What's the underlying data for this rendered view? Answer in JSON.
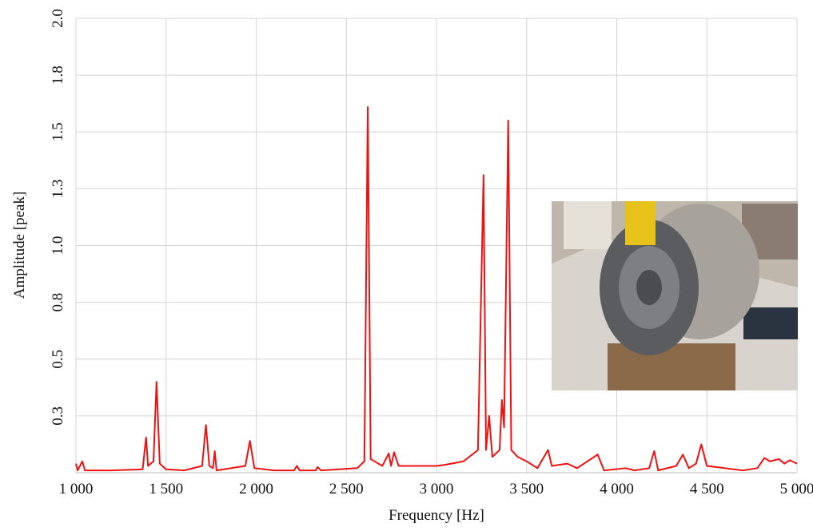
{
  "chart_data": {
    "type": "line",
    "x_label": "Frequency [Hz]",
    "y_label": "Amplitude [peak]",
    "xlim": [
      1000,
      5000
    ],
    "ylim": [
      0,
      2
    ],
    "xticks": [
      {
        "value": 1000,
        "label": "1 000"
      },
      {
        "value": 1500,
        "label": "1 500"
      },
      {
        "value": 2000,
        "label": "2 000"
      },
      {
        "value": 2500,
        "label": "2 500"
      },
      {
        "value": 3000,
        "label": "3 000"
      },
      {
        "value": 3500,
        "label": "3 500"
      },
      {
        "value": 4000,
        "label": "4 000"
      },
      {
        "value": 4500,
        "label": "4 500"
      },
      {
        "value": 5000,
        "label": "5 000"
      }
    ],
    "yticks": [
      {
        "value": 0.25,
        "label": "0.3"
      },
      0.5,
      {
        "value": 0.75,
        "label": "0.8"
      },
      {
        "value": 1,
        "label": "1.0"
      },
      {
        "value": 1.25,
        "label": "1.3"
      },
      1.5,
      {
        "value": 1.75,
        "label": "1.8"
      },
      {
        "value": 2,
        "label": "2.0"
      }
    ],
    "grid": true,
    "x": [
      1000,
      1010,
      1035,
      1050,
      1200,
      1370,
      1389,
      1400,
      1430,
      1447,
      1465,
      1500,
      1600,
      1700,
      1721,
      1740,
      1760,
      1770,
      1780,
      1940,
      1965,
      1990,
      2100,
      2210,
      2226,
      2240,
      2330,
      2340,
      2360,
      2560,
      2600,
      2619,
      2635,
      2700,
      2735,
      2748,
      2765,
      2790,
      3000,
      3050,
      3150,
      3230,
      3261,
      3275,
      3292,
      3310,
      3350,
      3363,
      3375,
      3398,
      3415,
      3450,
      3500,
      3560,
      3619,
      3640,
      3726,
      3780,
      3894,
      3930,
      4050,
      4100,
      4180,
      4208,
      4230,
      4330,
      4367,
      4400,
      4440,
      4469,
      4500,
      4600,
      4700,
      4780,
      4819,
      4850,
      4900,
      4930,
      4960,
      5000
    ],
    "series": [
      {
        "color": "#ee1111",
        "values": [
          0.04,
          0.01,
          0.05,
          0.01,
          0.01,
          0.015,
          0.155,
          0.03,
          0.05,
          0.4,
          0.04,
          0.015,
          0.01,
          0.03,
          0.21,
          0.03,
          0.02,
          0.095,
          0.01,
          0.03,
          0.14,
          0.02,
          0.01,
          0.01,
          0.03,
          0.01,
          0.01,
          0.025,
          0.01,
          0.02,
          0.05,
          1.61,
          0.06,
          0.03,
          0.085,
          0.03,
          0.09,
          0.03,
          0.03,
          0.035,
          0.05,
          0.1,
          1.31,
          0.1,
          0.25,
          0.07,
          0.1,
          0.32,
          0.2,
          1.55,
          0.1,
          0.07,
          0.05,
          0.02,
          0.1,
          0.03,
          0.04,
          0.02,
          0.08,
          0.01,
          0.02,
          0.01,
          0.02,
          0.095,
          0.01,
          0.03,
          0.08,
          0.02,
          0.04,
          0.125,
          0.03,
          0.02,
          0.01,
          0.02,
          0.065,
          0.05,
          0.06,
          0.04,
          0.055,
          0.04
        ]
      }
    ]
  }
}
